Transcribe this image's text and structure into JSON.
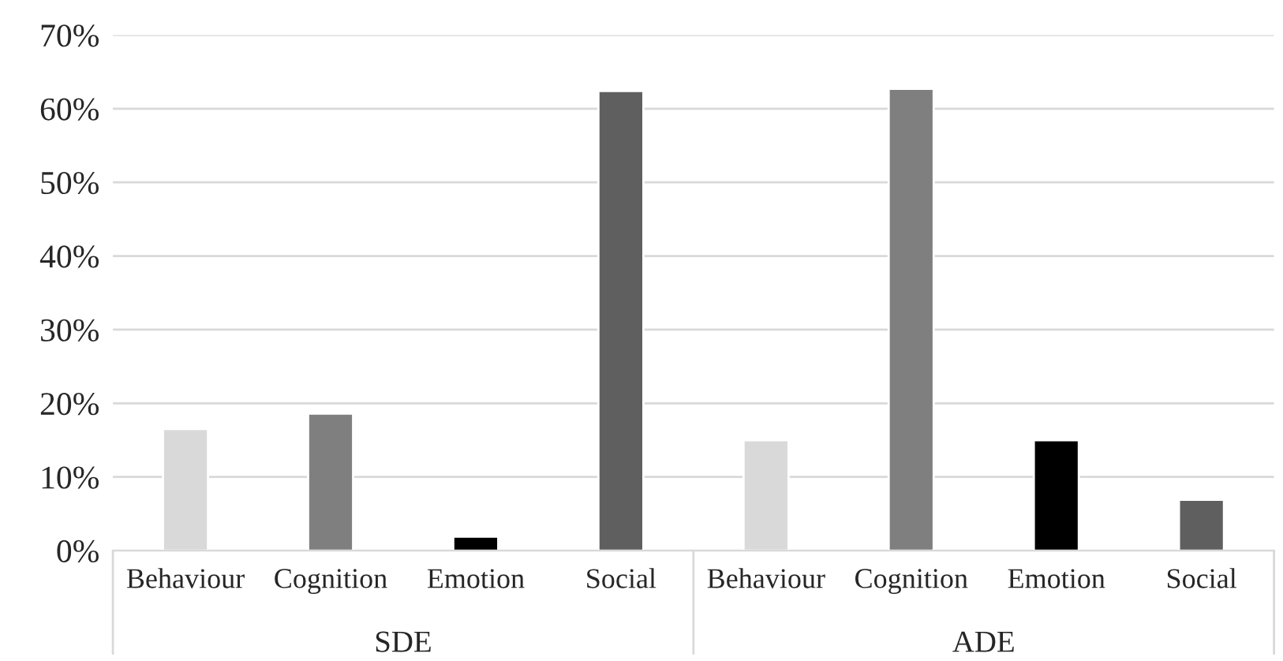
{
  "chart_data": {
    "type": "bar",
    "categories": [
      "Behaviour",
      "Cognition",
      "Emotion",
      "Social",
      "Behaviour",
      "Cognition",
      "Emotion",
      "Social"
    ],
    "values": [
      16.5,
      18.6,
      1.9,
      62.4,
      15.0,
      62.7,
      15.0,
      6.9
    ],
    "colors": [
      "#d9d9d9",
      "#7f7f7f",
      "#000000",
      "#5f5f5f",
      "#d9d9d9",
      "#7f7f7f",
      "#000000",
      "#5f5f5f"
    ],
    "annotations": [
      "SDE",
      "ADE"
    ],
    "ylim": [
      0,
      70
    ],
    "yticks": [
      {
        "value": 0,
        "label": "0%"
      },
      {
        "value": 10,
        "label": "10%"
      },
      {
        "value": 20,
        "label": "20%"
      },
      {
        "value": 30,
        "label": "30%"
      },
      {
        "value": 40,
        "label": "40%"
      },
      {
        "value": 50,
        "label": "50%"
      },
      {
        "value": 60,
        "label": "60%"
      },
      {
        "value": 70,
        "label": "70%"
      }
    ],
    "grid": "y"
  }
}
